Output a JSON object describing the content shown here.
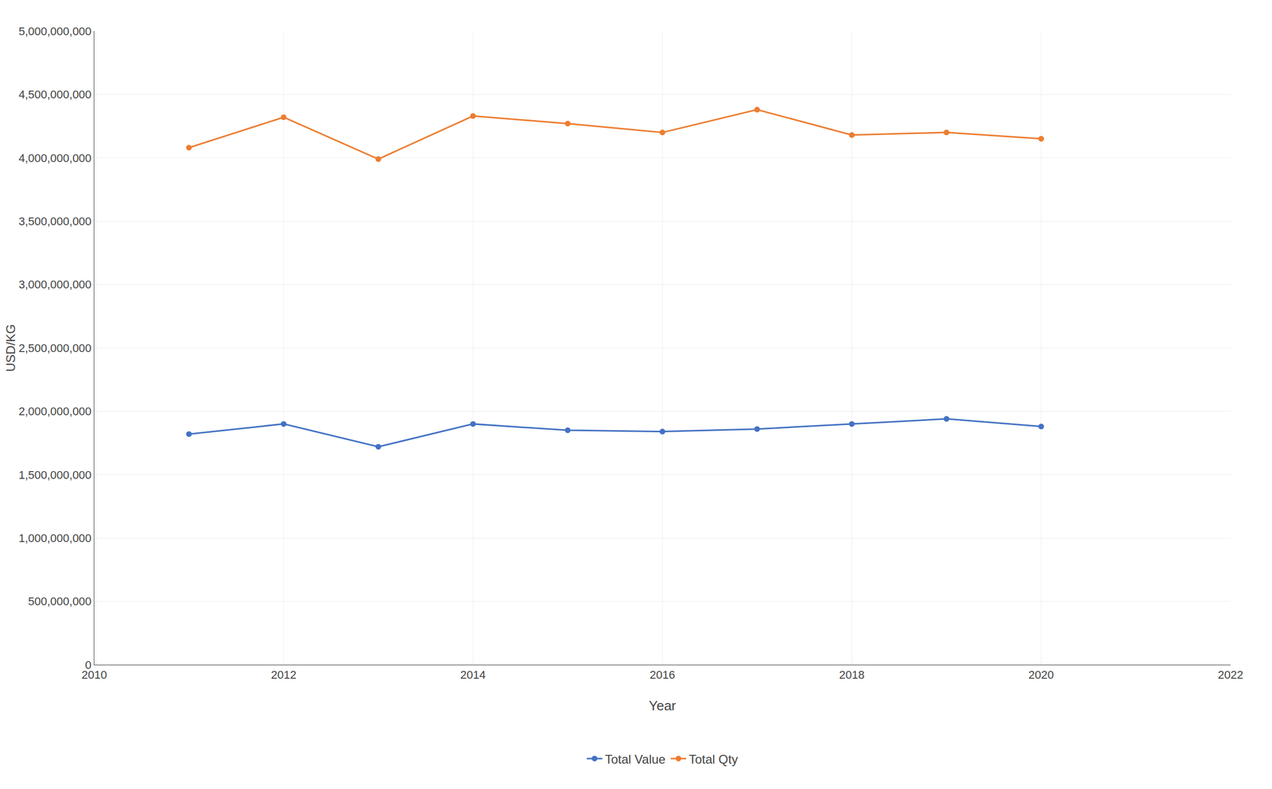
{
  "chart_data": {
    "type": "line",
    "xlabel": "Year",
    "ylabel": "USD/KG",
    "x": [
      2011,
      2012,
      2013,
      2014,
      2015,
      2016,
      2017,
      2018,
      2019,
      2020
    ],
    "series": [
      {
        "name": "Total Value",
        "color": "#4472C4",
        "values": [
          1820000000,
          1900000000,
          1720000000,
          1900000000,
          1850000000,
          1840000000,
          1860000000,
          1900000000,
          1940000000,
          1880000000
        ]
      },
      {
        "name": "Total Qty",
        "color": "#ED7D31",
        "values": [
          4080000000,
          4320000000,
          3990000000,
          4330000000,
          4270000000,
          4200000000,
          4380000000,
          4180000000,
          4200000000,
          4150000000
        ]
      }
    ],
    "xlim": [
      2010,
      2022
    ],
    "xticks": [
      2010,
      2012,
      2014,
      2016,
      2018,
      2020,
      2022
    ],
    "ylim": [
      0,
      5000000000
    ],
    "yticks": [
      0,
      {
        "value": 500000000,
        "label": "500,000,000"
      },
      {
        "value": 1000000000,
        "label": "1,000,000,000"
      },
      {
        "value": 1500000000,
        "label": "1,500,000,000"
      },
      {
        "value": 2000000000,
        "label": "2,000,000,000"
      },
      {
        "value": 2500000000,
        "label": "2,500,000,000"
      },
      {
        "value": 3000000000,
        "label": "3,000,000,000"
      },
      {
        "value": 3500000000,
        "label": "3,500,000,000"
      },
      {
        "value": 4000000000,
        "label": "4,000,000,000"
      },
      {
        "value": 4500000000,
        "label": "4,500,000,000"
      },
      {
        "value": 5000000000,
        "label": "5,000,000,000"
      }
    ],
    "grid": true,
    "legend": "bottom",
    "marker": "circle"
  }
}
